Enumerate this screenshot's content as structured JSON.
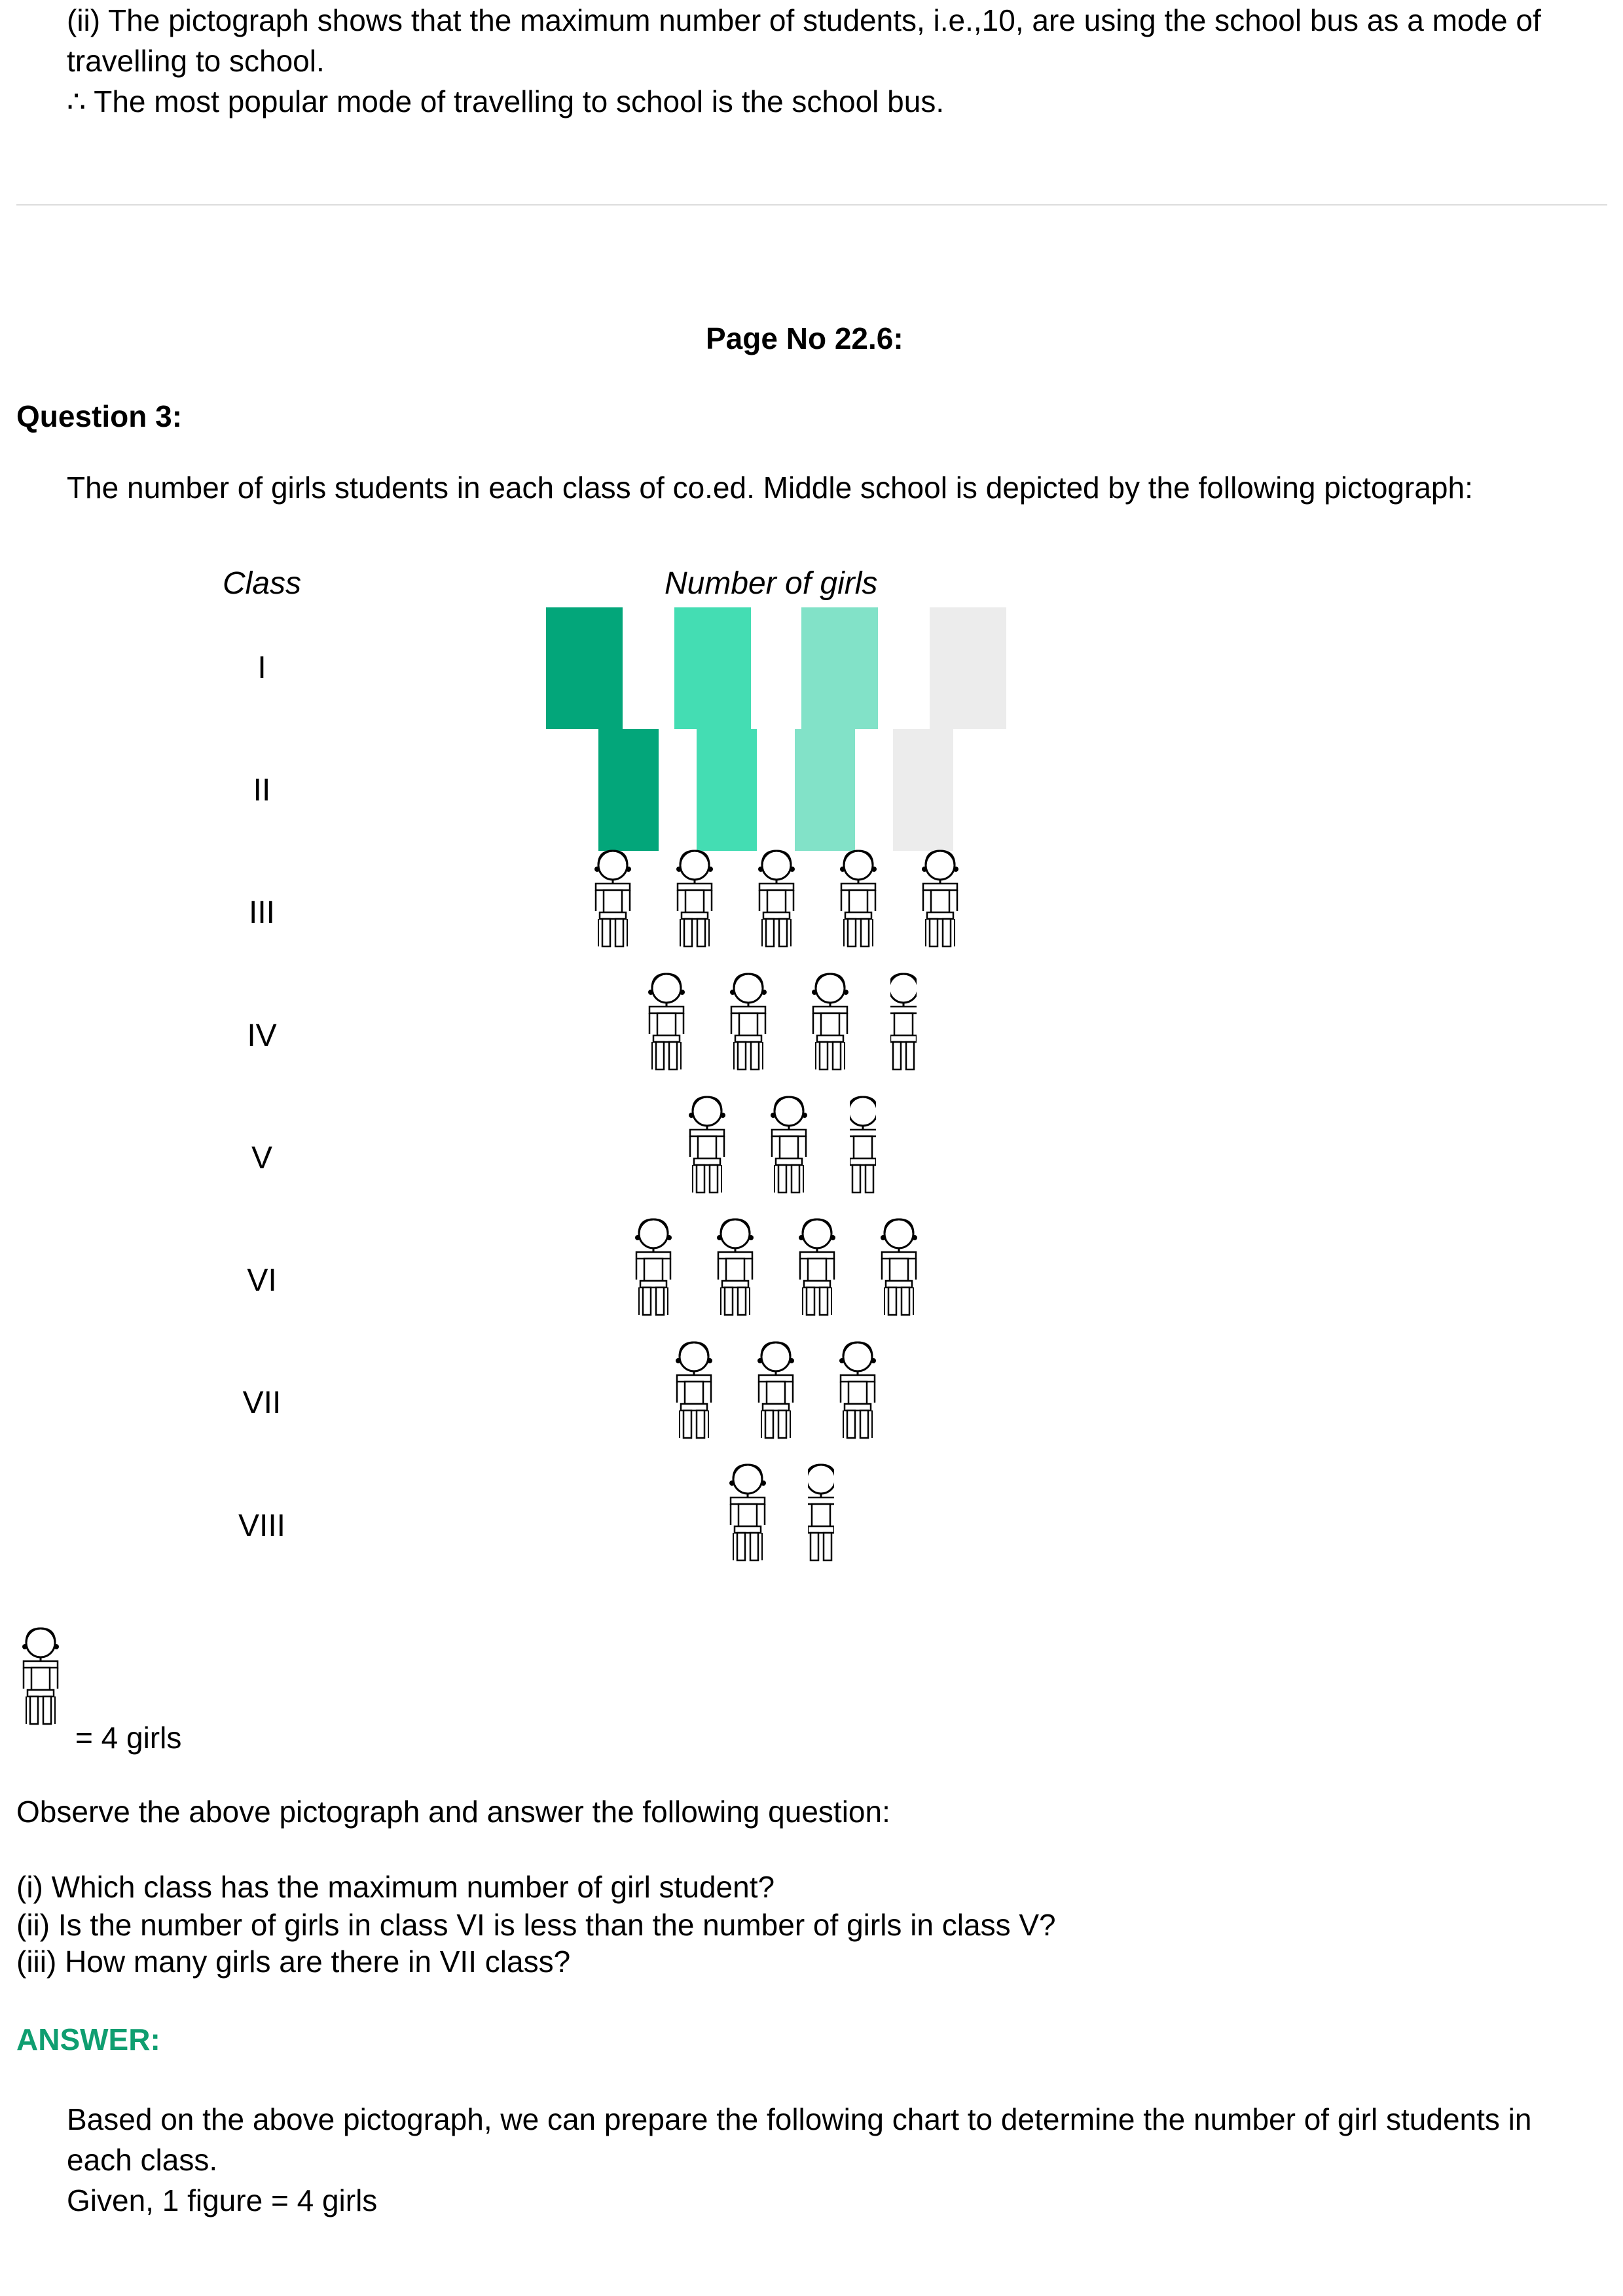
{
  "intro": {
    "line1": "(ii) The pictograph shows that the maximum number of students, i.e.,10, are using the school bus as a mode of",
    "line2": "travelling to school.",
    "line3": "∴ The most popular mode of travelling to school is the school bus."
  },
  "page_no": "Page No 22.6:",
  "question": {
    "title": "Question 3:",
    "prompt": "The number of girls students in each class of co.ed. Middle school is depicted by the following pictograph:"
  },
  "pictograph": {
    "col_class": "Class",
    "col_number": "Number of girls",
    "colors": [
      "#03a67a",
      "#44ddb3",
      "#82e2c8",
      "#ececec"
    ],
    "rows": [
      {
        "class": "I",
        "figures": 4
      },
      {
        "class": "II",
        "figures": 4
      },
      {
        "class": "III",
        "figures": 5
      },
      {
        "class": "IV",
        "figures": 3.5
      },
      {
        "class": "V",
        "figures": 2.5
      },
      {
        "class": "VI",
        "figures": 4
      },
      {
        "class": "VII",
        "figures": 3
      },
      {
        "class": "VIII",
        "figures": 1.5
      }
    ],
    "key_text": "= 4 girls"
  },
  "observe": "Observe the above pictograph and answer the following question:",
  "questions": [
    "(i) Which class has the maximum number of girl student?",
    "(ii) Is the number of girls in class VI is less than the number of girls in class V?",
    "(iii) How many girls are there in VII class?"
  ],
  "answer": {
    "heading": "ANSWER:",
    "line1": "Based on the above pictograph, we can prepare the following chart to determine the number of girl students in",
    "line2": "each class.",
    "line3": "Given, 1 figure = 4 girls"
  }
}
